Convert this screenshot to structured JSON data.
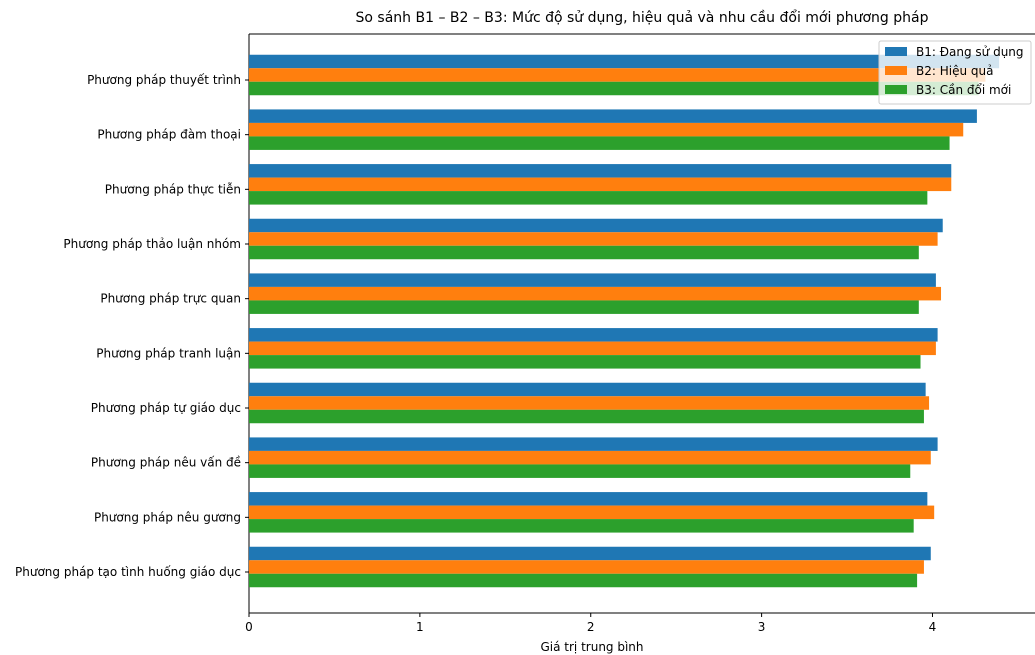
{
  "chart_data": {
    "type": "bar",
    "orientation": "horizontal",
    "title": "So sánh B1 – B2 – B3: Mức độ sử dụng, hiệu quả và nhu cầu đổi mới phương pháp",
    "xlabel": "Giá trị trung bình",
    "ylabel": "",
    "xlim": [
      0,
      4.6
    ],
    "xticks": [
      "0",
      "1",
      "2",
      "3",
      "4"
    ],
    "grid": false,
    "legend_position": "top-right",
    "categories": [
      "Phương pháp thuyết trình",
      "Phương pháp đàm thoại",
      "Phương pháp thực tiễn",
      "Phương pháp thảo luận nhóm",
      "Phương pháp trực quan",
      "Phương pháp tranh luận",
      "Phương pháp tự giáo dục",
      "Phương pháp nêu vấn đề",
      "Phương pháp nêu gương",
      "Phương pháp tạo tình huống giáo dục"
    ],
    "series": [
      {
        "name": "B1: Đang sử dụng",
        "color": "#1f77b4",
        "values": [
          4.39,
          4.26,
          4.11,
          4.06,
          4.02,
          4.03,
          3.96,
          4.03,
          3.97,
          3.99
        ]
      },
      {
        "name": "B2: Hiệu quả",
        "color": "#ff7f0e",
        "values": [
          4.31,
          4.18,
          4.11,
          4.03,
          4.05,
          4.02,
          3.98,
          3.99,
          4.01,
          3.95
        ]
      },
      {
        "name": "B3: Cần đổi mới",
        "color": "#2ca02c",
        "values": [
          4.27,
          4.1,
          3.97,
          3.92,
          3.92,
          3.93,
          3.95,
          3.87,
          3.89,
          3.91
        ]
      }
    ]
  }
}
